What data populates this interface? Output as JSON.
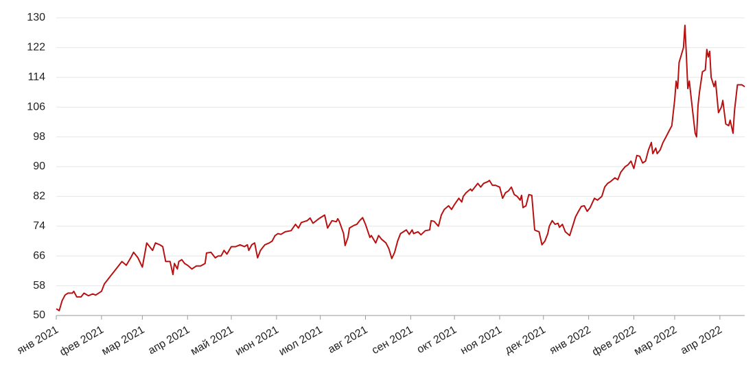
{
  "chart_data": {
    "type": "line",
    "x": [
      0,
      2,
      4,
      6,
      8,
      11,
      12,
      14,
      17,
      19,
      22,
      25,
      27,
      31,
      33,
      37,
      40,
      43,
      45,
      48,
      51,
      53,
      56,
      59,
      62,
      64,
      66,
      68,
      71,
      73,
      75,
      78,
      80,
      81,
      83,
      84,
      86,
      88,
      90,
      93,
      96,
      99,
      102,
      103,
      106,
      109,
      111,
      113,
      115,
      117,
      120,
      123,
      126,
      129,
      131,
      132,
      134,
      136,
      138,
      140,
      143,
      146,
      148,
      150,
      152,
      154,
      157,
      161,
      164,
      166,
      168,
      172,
      174,
      176,
      180,
      184,
      186,
      189,
      192,
      193,
      194,
      197,
      198,
      200,
      201,
      204,
      206,
      208,
      210,
      212,
      215,
      216,
      219,
      221,
      223,
      226,
      228,
      230,
      232,
      234,
      236,
      238,
      240,
      242,
      244,
      245,
      248,
      250,
      253,
      256,
      257,
      259,
      262,
      264,
      266,
      269,
      271,
      273,
      276,
      278,
      279,
      281,
      284,
      285,
      287,
      289,
      291,
      293,
      296,
      297,
      299,
      301,
      304,
      306,
      308,
      310,
      312,
      314,
      316,
      318,
      319,
      320,
      322,
      324,
      326,
      328,
      329,
      331,
      333,
      335,
      337,
      338,
      340,
      342,
      344,
      345,
      347,
      349,
      352,
      354,
      356,
      358,
      360,
      362,
      364,
      366,
      369,
      371,
      374,
      376,
      378,
      380,
      383,
      385,
      387,
      390,
      392,
      394,
      396,
      398,
      400,
      402,
      404,
      406,
      408,
      409,
      411,
      412,
      414,
      416,
      418,
      420,
      422,
      424,
      425,
      426,
      427,
      430,
      431,
      432,
      433,
      434,
      436,
      438,
      439,
      440,
      441,
      443,
      445,
      446,
      447,
      448,
      449,
      451,
      452,
      454,
      456,
      457,
      459,
      461,
      462,
      464,
      465,
      467,
      470,
      472
    ],
    "series": [
      {
        "color": "#b81010",
        "values": [
          51.8,
          51.3,
          54,
          55.5,
          56,
          56,
          56.5,
          55,
          55,
          56,
          55.3,
          55.8,
          55.5,
          56.5,
          58.5,
          60.5,
          62,
          63.5,
          64.5,
          63.5,
          65.5,
          67,
          65.5,
          63,
          69.5,
          68.5,
          67.5,
          69.5,
          69,
          68.5,
          64.5,
          64.5,
          61,
          64,
          62.5,
          64.5,
          65,
          64,
          63.5,
          62.5,
          63.3,
          63.3,
          64,
          66.8,
          67,
          65.5,
          66,
          66,
          67.5,
          66.5,
          68.5,
          68.5,
          69,
          68.5,
          69,
          67.5,
          69,
          69.5,
          65.5,
          67.5,
          69,
          69.5,
          70,
          71.5,
          72,
          71.8,
          72.5,
          72.8,
          74.5,
          73.5,
          75,
          75.5,
          76.2,
          74.8,
          76,
          77,
          73.5,
          75.5,
          75.2,
          76,
          75.3,
          72,
          68.8,
          71,
          73.5,
          74.2,
          74.5,
          75.5,
          76.3,
          74.5,
          71,
          71.5,
          69.5,
          71.5,
          70.5,
          69.5,
          68,
          65.3,
          67,
          70,
          72,
          72.5,
          73,
          71.8,
          73,
          72,
          72.5,
          71.7,
          72.8,
          73,
          75.5,
          75.3,
          74,
          77,
          78.5,
          79.5,
          78.5,
          79.8,
          81.5,
          80.5,
          82,
          83,
          84,
          83.5,
          84.5,
          85.5,
          84.5,
          85.5,
          86,
          86.3,
          85,
          85,
          84.5,
          81.5,
          83,
          83.5,
          84.5,
          82.5,
          82,
          81,
          82.3,
          79,
          79.5,
          82.5,
          82.3,
          73,
          72.8,
          72.5,
          69,
          70,
          72,
          74,
          75.5,
          74.5,
          74.8,
          73.7,
          74.5,
          72.5,
          71.5,
          74,
          76.5,
          78,
          79.3,
          79.5,
          78,
          79,
          81.5,
          81,
          82,
          84.5,
          85.5,
          86,
          87,
          86.5,
          88.5,
          90,
          90.5,
          91.5,
          89.5,
          93,
          92.8,
          91,
          91.5,
          94.5,
          96.5,
          93.5,
          95,
          93.5,
          94.5,
          96.5,
          98,
          99.5,
          101,
          108,
          113,
          111,
          118,
          122,
          128,
          120,
          111,
          113,
          106,
          99,
          98,
          106.5,
          110,
          115.5,
          116,
          121.5,
          119.5,
          121,
          114,
          111.5,
          113,
          104.5,
          106,
          107.8,
          101.5,
          101,
          102.5,
          99,
          105,
          112,
          112,
          111.5
        ]
      }
    ],
    "xlim": [
      0,
      472
    ],
    "xticks": [
      {
        "value": 0,
        "label": "янв 2021"
      },
      {
        "value": 31,
        "label": "фев 2021"
      },
      {
        "value": 59,
        "label": "мар 2021"
      },
      {
        "value": 90,
        "label": "апр 2021"
      },
      {
        "value": 120,
        "label": "май 2021"
      },
      {
        "value": 151,
        "label": "июн 2021"
      },
      {
        "value": 181,
        "label": "июл 2021"
      },
      {
        "value": 212,
        "label": "авг 2021"
      },
      {
        "value": 243,
        "label": "сен 2021"
      },
      {
        "value": 273,
        "label": "окт 2021"
      },
      {
        "value": 304,
        "label": "ноя 2021"
      },
      {
        "value": 334,
        "label": "дек 2021"
      },
      {
        "value": 365,
        "label": "янв 2022"
      },
      {
        "value": 396,
        "label": "фев 2022"
      },
      {
        "value": 424,
        "label": "мар 2022"
      },
      {
        "value": 455,
        "label": "апр 2022"
      }
    ],
    "ylim": [
      50,
      130
    ],
    "yticks": [
      50,
      58,
      66,
      74,
      82,
      90,
      98,
      106,
      114,
      122,
      130
    ],
    "grid": true
  }
}
